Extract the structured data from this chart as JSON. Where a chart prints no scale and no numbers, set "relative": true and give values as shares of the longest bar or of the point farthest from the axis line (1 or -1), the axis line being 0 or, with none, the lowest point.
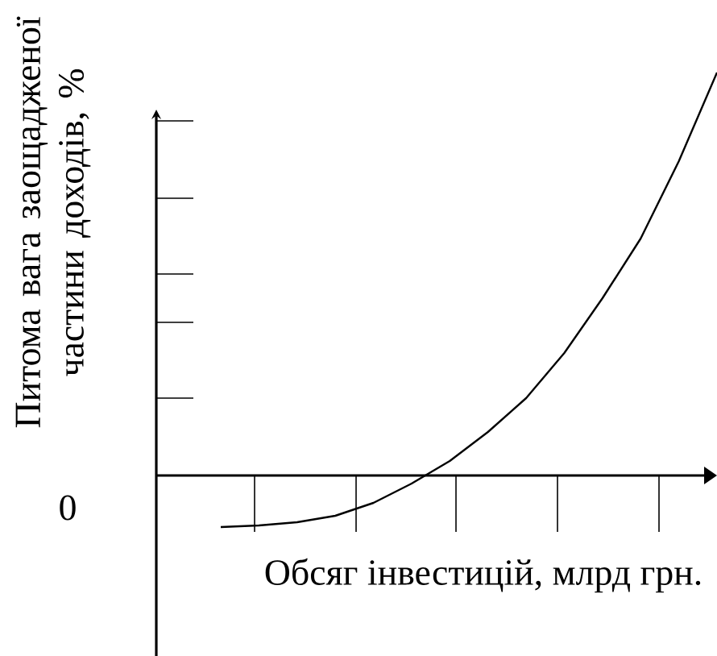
{
  "chart_data": {
    "type": "line",
    "relative": true,
    "color": "#000000",
    "xlabel": "Обсяг інвестицій, млрд грн.",
    "ylabel": "Питома вага заощадженої частини доходів, %",
    "annotations": [
      "0"
    ],
    "categories": [
      null,
      null,
      null,
      null,
      null,
      null,
      null,
      null,
      null,
      null,
      null,
      null,
      null,
      null
    ],
    "values": [
      -0.128,
      -0.124,
      -0.116,
      -0.1,
      -0.068,
      -0.02,
      0.036,
      0.108,
      0.192,
      0.304,
      0.44,
      0.588,
      0.78,
      1
    ]
  }
}
